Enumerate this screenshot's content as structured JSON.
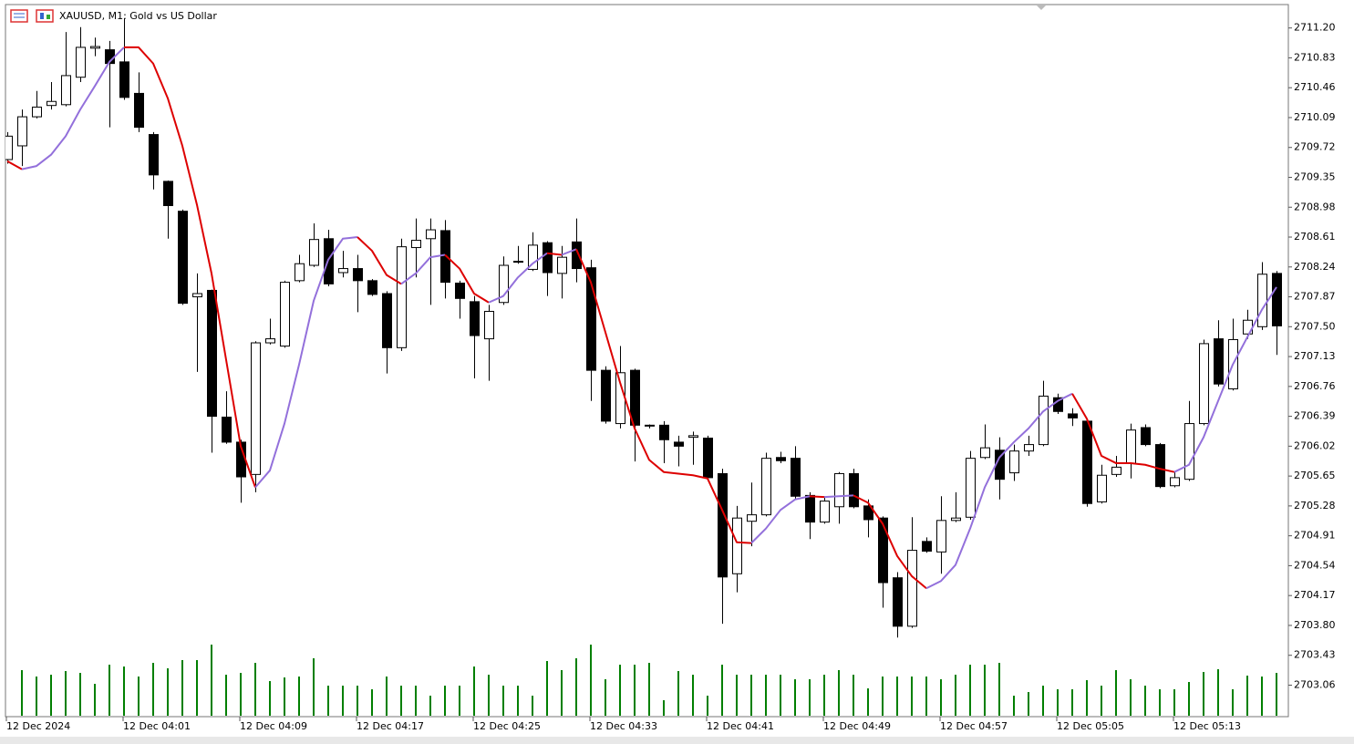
{
  "chart_data": {
    "type": "candlestick",
    "title": "XAUUSD, M1:  Gold vs US Dollar",
    "categories": [
      "12 Dec 2024",
      null,
      null,
      null,
      null,
      null,
      null,
      null,
      "12 Dec 04:01",
      null,
      null,
      null,
      null,
      null,
      null,
      null,
      "12 Dec 04:09",
      null,
      null,
      null,
      null,
      null,
      null,
      null,
      "12 Dec 04:17",
      null,
      null,
      null,
      null,
      null,
      null,
      null,
      "12 Dec 04:25",
      null,
      null,
      null,
      null,
      null,
      null,
      null,
      "12 Dec 04:33",
      null,
      null,
      null,
      null,
      null,
      null,
      null,
      "12 Dec 04:41",
      null,
      null,
      null,
      null,
      null,
      null,
      null,
      "12 Dec 04:49",
      null,
      null,
      null,
      null,
      null,
      null,
      null,
      "12 Dec 04:57",
      null,
      null,
      null,
      null,
      null,
      null,
      null,
      "12 Dec 05:05",
      null,
      null,
      null,
      null,
      null,
      null,
      null,
      "12 Dec 05:13",
      null,
      null,
      null,
      null,
      null,
      null,
      null
    ],
    "open": [
      2709.57,
      2709.74,
      2710.1,
      2710.24,
      2710.25,
      2710.59,
      2710.95,
      2710.93,
      2710.78,
      2710.39,
      2709.88,
      2709.3,
      2708.93,
      2707.87,
      2707.95,
      2706.38,
      2706.07,
      2705.67,
      2707.3,
      2707.26,
      2708.07,
      2708.26,
      2708.59,
      2708.17,
      2708.22,
      2708.07,
      2707.91,
      2707.24,
      2708.48,
      2708.59,
      2708.69,
      2708.04,
      2707.81,
      2707.35,
      2707.8,
      2708.3,
      2708.21,
      2708.54,
      2708.16,
      2708.55,
      2708.23,
      2706.96,
      2706.3,
      2706.96,
      2706.28,
      2706.28,
      2706.07,
      2706.13,
      2706.12,
      2705.68,
      2704.44,
      2705.09,
      2705.17,
      2705.88,
      2705.87,
      2705.41,
      2705.08,
      2705.27,
      2705.68,
      2705.28,
      2705.13,
      2704.39,
      2703.79,
      2704.84,
      2704.71,
      2705.1,
      2705.14,
      2705.88,
      2705.97,
      2705.69,
      2705.96,
      2706.04,
      2706.62,
      2706.42,
      2706.33,
      2705.33,
      2705.67,
      2705.81,
      2706.25,
      2706.04,
      2705.53,
      2705.61,
      2706.3,
      2707.35,
      2706.73,
      2707.41,
      2707.5,
      2708.16
    ],
    "high": [
      2709.91,
      2710.19,
      2710.42,
      2710.53,
      2711.15,
      2711.21,
      2711.08,
      2711.04,
      2711.32,
      2710.65,
      2709.91,
      2709.31,
      2708.95,
      2708.16,
      2707.96,
      2706.7,
      2706.1,
      2707.32,
      2707.6,
      2708.07,
      2708.39,
      2708.78,
      2708.7,
      2708.44,
      2708.39,
      2708.09,
      2707.94,
      2708.59,
      2708.84,
      2708.84,
      2708.82,
      2708.07,
      2707.88,
      2707.77,
      2708.37,
      2708.5,
      2708.67,
      2708.56,
      2708.5,
      2708.84,
      2708.33,
      2707.01,
      2707.26,
      2706.98,
      2706.29,
      2706.33,
      2706.15,
      2706.2,
      2706.15,
      2705.74,
      2705.28,
      2705.57,
      2705.94,
      2705.95,
      2706.02,
      2705.45,
      2705.4,
      2705.7,
      2705.74,
      2705.36,
      2705.15,
      2704.46,
      2705.14,
      2704.89,
      2705.4,
      2705.45,
      2705.96,
      2706.29,
      2706.13,
      2706.04,
      2706.15,
      2706.83,
      2706.67,
      2706.49,
      2706.36,
      2705.79,
      2705.9,
      2706.3,
      2706.29,
      2706.06,
      2705.7,
      2706.58,
      2707.34,
      2707.58,
      2707.6,
      2707.71,
      2708.3,
      2708.19
    ],
    "low": [
      2709.52,
      2709.49,
      2710.08,
      2710.19,
      2710.23,
      2710.53,
      2710.85,
      2709.97,
      2710.31,
      2709.91,
      2709.2,
      2708.59,
      2707.77,
      2706.94,
      2705.94,
      2706.05,
      2705.32,
      2705.45,
      2707.28,
      2707.24,
      2708.05,
      2708.24,
      2708.0,
      2708.11,
      2707.68,
      2707.88,
      2706.92,
      2707.2,
      2708.11,
      2707.77,
      2707.85,
      2707.6,
      2706.86,
      2706.83,
      2707.77,
      2708.28,
      2708.19,
      2707.88,
      2707.85,
      2708.05,
      2706.58,
      2706.3,
      2706.24,
      2705.83,
      2706.24,
      2705.81,
      2705.77,
      2705.79,
      2705.61,
      2703.82,
      2704.21,
      2704.78,
      2705.15,
      2705.81,
      2705.37,
      2704.87,
      2705.06,
      2705.06,
      2705.25,
      2704.89,
      2704.02,
      2703.65,
      2703.77,
      2704.7,
      2704.44,
      2705.08,
      2705.11,
      2705.86,
      2705.36,
      2705.59,
      2705.9,
      2706.02,
      2706.42,
      2706.27,
      2705.27,
      2705.31,
      2705.64,
      2705.62,
      2706.02,
      2705.5,
      2705.51,
      2705.59,
      2706.28,
      2706.76,
      2706.71,
      2707.35,
      2707.46,
      2707.15
    ],
    "close": [
      2709.86,
      2710.1,
      2710.22,
      2710.29,
      2710.61,
      2710.96,
      2710.97,
      2710.76,
      2710.34,
      2709.97,
      2709.38,
      2709.0,
      2707.79,
      2707.91,
      2706.39,
      2706.07,
      2705.64,
      2707.3,
      2707.35,
      2708.05,
      2708.28,
      2708.58,
      2708.03,
      2708.22,
      2708.07,
      2707.9,
      2707.24,
      2708.49,
      2708.57,
      2708.7,
      2708.05,
      2707.85,
      2707.39,
      2707.69,
      2708.26,
      2708.31,
      2708.51,
      2708.17,
      2708.36,
      2708.22,
      2706.96,
      2706.33,
      2706.93,
      2706.28,
      2706.27,
      2706.1,
      2706.02,
      2706.15,
      2705.63,
      2704.4,
      2705.13,
      2705.17,
      2705.87,
      2705.84,
      2705.4,
      2705.08,
      2705.34,
      2705.68,
      2705.27,
      2705.11,
      2704.33,
      2703.79,
      2704.73,
      2704.72,
      2705.1,
      2705.13,
      2705.87,
      2706.0,
      2705.61,
      2705.96,
      2706.04,
      2706.64,
      2706.45,
      2706.37,
      2705.31,
      2705.66,
      2705.76,
      2706.22,
      2706.04,
      2705.52,
      2705.63,
      2706.3,
      2707.29,
      2706.79,
      2707.34,
      2707.58,
      2708.15,
      2707.51
    ],
    "ma": [
      2709.55,
      2709.45,
      2709.49,
      2709.63,
      2709.86,
      2710.19,
      2710.48,
      2710.78,
      2710.96,
      2710.96,
      2710.76,
      2710.33,
      2709.74,
      2709.01,
      2708.16,
      2707.09,
      2706.02,
      2705.51,
      2705.72,
      2706.3,
      2707.03,
      2707.82,
      2708.33,
      2708.59,
      2708.61,
      2708.44,
      2708.14,
      2708.03,
      2708.16,
      2708.36,
      2708.39,
      2708.22,
      2707.91,
      2707.8,
      2707.88,
      2708.11,
      2708.28,
      2708.41,
      2708.39,
      2708.46,
      2708.05,
      2707.43,
      2706.81,
      2706.24,
      2705.85,
      2705.7,
      2705.68,
      2705.66,
      2705.62,
      2705.23,
      2704.83,
      2704.82,
      2705.0,
      2705.23,
      2705.36,
      2705.4,
      2705.39,
      2705.4,
      2705.41,
      2705.32,
      2705.06,
      2704.66,
      2704.41,
      2704.26,
      2704.35,
      2704.55,
      2705.0,
      2705.51,
      2705.88,
      2706.07,
      2706.24,
      2706.45,
      2706.58,
      2706.67,
      2706.36,
      2705.9,
      2705.81,
      2705.81,
      2705.79,
      2705.74,
      2705.7,
      2705.79,
      2706.13,
      2706.58,
      2707.03,
      2707.37,
      2707.71,
      2707.99
    ],
    "ma_up_color": "#9370db",
    "ma_down_color": "#dd0000",
    "volume": [
      null,
      50,
      43,
      45,
      49,
      47,
      35,
      56,
      54,
      43,
      58,
      52,
      61,
      61,
      78,
      45,
      47,
      58,
      38,
      42,
      43,
      63,
      33,
      33,
      33,
      29,
      43,
      33,
      33,
      22,
      33,
      33,
      54,
      45,
      33,
      33,
      22,
      60,
      50,
      63,
      78,
      40,
      56,
      56,
      58,
      17,
      49,
      45,
      22,
      56,
      45,
      45,
      45,
      45,
      40,
      40,
      45,
      50,
      45,
      30,
      43,
      43,
      43,
      43,
      40,
      45,
      56,
      56,
      58,
      22,
      26,
      33,
      29,
      29,
      39,
      33,
      50,
      40,
      33,
      29,
      29,
      37,
      48,
      51,
      29,
      44,
      43,
      47
    ],
    "volume_color": "#007f00",
    "up_color": "#ffffff",
    "down_color": "#000000",
    "ylim": [
      2702.67,
      2711.49
    ],
    "yticks": [
      {
        "value": 2711.2,
        "label": "2711.20"
      },
      2710.83,
      2710.46,
      2710.09,
      2709.72,
      2709.35,
      2708.98,
      2708.61,
      2708.24,
      2707.87,
      {
        "value": 2707.5,
        "label": "2707.50"
      },
      2707.13,
      2706.76,
      2706.39,
      2706.02,
      2705.65,
      2705.28,
      2704.91,
      2704.54,
      2704.17,
      {
        "value": 2703.8,
        "label": "2703.80"
      },
      2703.43,
      2703.06
    ]
  }
}
